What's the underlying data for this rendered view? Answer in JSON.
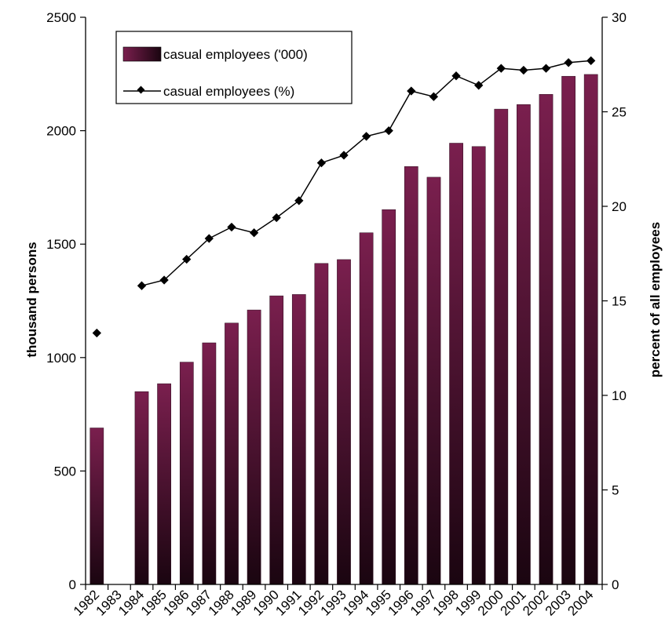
{
  "chart_data": {
    "type": "bar+line",
    "categories": [
      "1982",
      "1983",
      "1984",
      "1985",
      "1986",
      "1987",
      "1988",
      "1989",
      "1990",
      "1991",
      "1992",
      "1993",
      "1994",
      "1995",
      "1996",
      "1997",
      "1998",
      "1999",
      "2000",
      "2001",
      "2002",
      "2003",
      "2004"
    ],
    "series": [
      {
        "name": "casual employees ('000)",
        "type": "bar",
        "axis": "left",
        "values": [
          690,
          null,
          850,
          885,
          980,
          1065,
          1152,
          1210,
          1272,
          1278,
          1415,
          1432,
          1550,
          1652,
          1842,
          1795,
          1945,
          1930,
          2095,
          2115,
          2160,
          2240,
          2248
        ]
      },
      {
        "name": "casual employees (%)",
        "type": "line",
        "axis": "right",
        "values": [
          13.3,
          null,
          15.8,
          16.1,
          17.2,
          18.3,
          18.9,
          18.6,
          19.4,
          20.3,
          22.3,
          22.7,
          23.7,
          24.0,
          26.1,
          25.8,
          26.9,
          26.4,
          27.3,
          27.2,
          27.3,
          27.6,
          27.7
        ]
      }
    ],
    "ylabel": "thousand persons",
    "y2label": "percent of all employees",
    "ylim": [
      0,
      2500
    ],
    "y2lim": [
      0,
      30
    ],
    "yticks": [
      "0",
      "500",
      "1000",
      "1500",
      "2000",
      "2500"
    ],
    "y2ticks": [
      "0",
      "5",
      "10",
      "15",
      "20",
      "25",
      "30"
    ],
    "legend_position": "top-left",
    "grid": false,
    "colors": {
      "bar": "#7a1f4e",
      "line": "#000000"
    }
  }
}
